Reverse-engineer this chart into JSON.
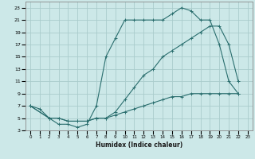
{
  "title": "",
  "xlabel": "Humidex (Indice chaleur)",
  "background_color": "#cce8e8",
  "grid_color": "#aacccc",
  "line_color": "#2a6e6e",
  "xlim": [
    -0.5,
    23.5
  ],
  "ylim": [
    3,
    24
  ],
  "xticks": [
    0,
    1,
    2,
    3,
    4,
    5,
    6,
    7,
    8,
    9,
    10,
    11,
    12,
    13,
    14,
    15,
    16,
    17,
    18,
    19,
    20,
    21,
    22,
    23
  ],
  "yticks": [
    3,
    5,
    7,
    9,
    11,
    13,
    15,
    17,
    19,
    21,
    23
  ],
  "curve1_x": [
    0,
    1,
    2,
    3,
    4,
    5,
    6,
    7,
    8,
    9,
    10,
    11,
    12,
    13,
    14,
    15,
    16,
    17,
    18,
    19,
    20,
    21,
    22
  ],
  "curve1_y": [
    7,
    6.5,
    5,
    4,
    4,
    3.5,
    4,
    7,
    15,
    18,
    21,
    21,
    21,
    21,
    21,
    22,
    23,
    22.5,
    21,
    21,
    17,
    11,
    9
  ],
  "curve2_x": [
    0,
    2,
    3,
    4,
    5,
    6,
    7,
    8,
    9,
    10,
    11,
    12,
    13,
    14,
    15,
    16,
    17,
    18,
    19,
    20,
    21,
    22
  ],
  "curve2_y": [
    7,
    5,
    5,
    4.5,
    4.5,
    4.5,
    5,
    5,
    6,
    8,
    10,
    12,
    13,
    15,
    16,
    17,
    18,
    19,
    20,
    20,
    17,
    11
  ],
  "curve3_x": [
    0,
    2,
    3,
    4,
    5,
    6,
    7,
    8,
    9,
    10,
    11,
    12,
    13,
    14,
    15,
    16,
    17,
    18,
    19,
    20,
    21,
    22
  ],
  "curve3_y": [
    7,
    5,
    5,
    4.5,
    4.5,
    4.5,
    5,
    5,
    5.5,
    6,
    6.5,
    7,
    7.5,
    8,
    8.5,
    8.5,
    9,
    9,
    9,
    9,
    9,
    9
  ]
}
